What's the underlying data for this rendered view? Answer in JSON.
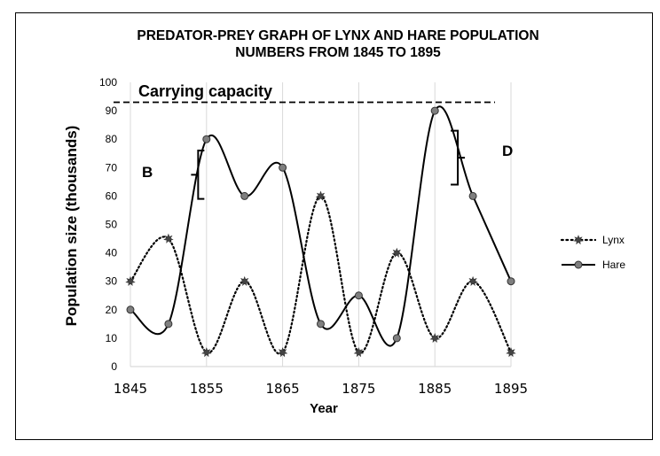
{
  "chart_data": {
    "type": "line",
    "title_lines": [
      "PREDATOR-PREY GRAPH OF LYNX AND HARE POPULATION",
      "NUMBERS FROM 1845 TO 1895"
    ],
    "xlabel": "Year",
    "ylabel": "Population size (thousands)",
    "x": [
      1845,
      1850,
      1855,
      1860,
      1865,
      1870,
      1875,
      1880,
      1885,
      1890,
      1895
    ],
    "x_tick_labels": [
      "1845",
      "1855",
      "1865",
      "1875",
      "1885",
      "1895"
    ],
    "x_tick_values": [
      1845,
      1855,
      1865,
      1875,
      1885,
      1895
    ],
    "xlim": [
      1845,
      1895
    ],
    "ylim": [
      0,
      100
    ],
    "y_ticks": [
      0,
      10,
      20,
      30,
      40,
      50,
      60,
      70,
      80,
      90,
      100
    ],
    "grid": "vertical",
    "legend_position": "right",
    "series": [
      {
        "name": "Lynx",
        "style": "dotted",
        "marker": "star",
        "values": [
          30,
          45,
          5,
          30,
          5,
          60,
          5,
          40,
          10,
          30,
          5
        ]
      },
      {
        "name": "Hare",
        "style": "solid",
        "marker": "circle",
        "values": [
          20,
          15,
          80,
          60,
          70,
          15,
          25,
          10,
          90,
          60,
          30
        ]
      }
    ],
    "annotations": {
      "carrying_capacity": {
        "label": "Carrying capacity",
        "y": 93
      },
      "B": {
        "label": "B",
        "x": 1852.5,
        "y_range": [
          59,
          76
        ]
      },
      "D": {
        "label": "D",
        "x": 1886.5,
        "y_range": [
          64,
          83
        ]
      }
    },
    "colors": {
      "line": "#000000",
      "marker_fill": "#7f7f7f",
      "grid": "#d9d9d9"
    }
  }
}
